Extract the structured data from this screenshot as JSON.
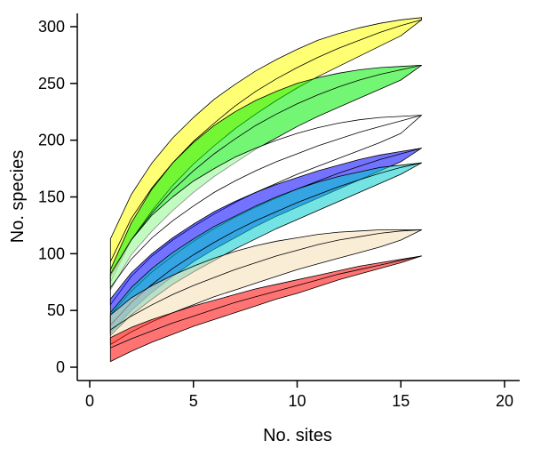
{
  "chart_data": {
    "type": "area",
    "title": "",
    "xlabel": "No. sites",
    "ylabel": "No. species",
    "xlim": [
      0,
      20
    ],
    "ylim": [
      0,
      300
    ],
    "x_ticks": [
      "0",
      "5",
      "10",
      "15",
      "20"
    ],
    "y_ticks": [
      "0",
      "50",
      "100",
      "150",
      "200",
      "250",
      "300"
    ],
    "grid": false,
    "legend": "none",
    "x": [
      1,
      2,
      3,
      4,
      5,
      6,
      7,
      8,
      9,
      10,
      11,
      12,
      13,
      14,
      15,
      16
    ],
    "series": [
      {
        "color": "#ffff00",
        "upper": [
          113,
          152,
          180,
          202,
          220,
          236,
          249,
          261,
          271,
          280,
          288,
          294,
          299,
          303,
          306,
          308
        ],
        "mid": [
          93,
          131,
          158,
          180,
          199,
          215,
          230,
          243,
          254,
          264,
          273,
          281,
          288,
          295,
          301,
          306
        ],
        "lower": [
          75,
          112,
          138,
          160,
          179,
          195,
          210,
          223,
          235,
          246,
          256,
          265,
          274,
          283,
          292,
          306
        ]
      },
      {
        "color": "#00ee00",
        "upper": [
          86,
          127,
          157,
          180,
          198,
          213,
          225,
          235,
          243,
          250,
          255,
          259,
          262,
          264,
          265,
          266
        ],
        "mid": [
          80,
          112,
          136,
          156,
          173,
          188,
          201,
          213,
          223,
          232,
          240,
          247,
          253,
          258,
          262,
          266
        ],
        "lower": [
          68,
          99,
          120,
          138,
          154,
          168,
          180,
          192,
          202,
          212,
          221,
          229,
          237,
          245,
          253,
          266
        ]
      },
      {
        "color": "#ffffff",
        "upper": [
          82,
          112,
          134,
          150,
          164,
          175,
          185,
          193,
          200,
          206,
          211,
          215,
          218,
          220,
          221,
          222
        ],
        "mid": [
          70,
          95,
          114,
          129,
          142,
          154,
          164,
          173,
          181,
          188,
          195,
          201,
          207,
          212,
          217,
          222
        ],
        "lower": [
          55,
          80,
          98,
          112,
          124,
          135,
          145,
          154,
          162,
          170,
          177,
          184,
          191,
          198,
          206,
          222
        ]
      },
      {
        "color": "#0000ff",
        "upper": [
          60,
          83,
          100,
          114,
          126,
          137,
          146,
          154,
          161,
          167,
          173,
          178,
          183,
          187,
          190,
          193
        ],
        "mid": [
          46,
          67,
          84,
          98,
          111,
          122,
          132,
          141,
          149,
          157,
          164,
          171,
          177,
          183,
          188,
          193
        ],
        "lower": [
          30,
          50,
          66,
          80,
          93,
          104,
          114,
          124,
          133,
          141,
          149,
          157,
          165,
          173,
          181,
          193
        ]
      },
      {
        "color": "#00cccc",
        "upper": [
          48,
          70,
          87,
          101,
          113,
          124,
          133,
          142,
          150,
          157,
          163,
          168,
          172,
          176,
          178,
          180
        ],
        "mid": [
          37,
          57,
          73,
          87,
          99,
          110,
          120,
          129,
          137,
          145,
          152,
          159,
          165,
          171,
          176,
          180
        ],
        "lower": [
          28,
          46,
          60,
          73,
          84,
          94,
          104,
          113,
          122,
          130,
          138,
          146,
          154,
          162,
          170,
          180
        ]
      },
      {
        "color": "#f5deb3",
        "upper": [
          46,
          61,
          72,
          81,
          89,
          96,
          102,
          107,
          111,
          114,
          117,
          119,
          120,
          121,
          121,
          121
        ],
        "mid": [
          33,
          45,
          55,
          64,
          72,
          79,
          86,
          92,
          98,
          103,
          108,
          112,
          115,
          118,
          120,
          121
        ],
        "lower": [
          20,
          31,
          40,
          48,
          55,
          62,
          68,
          74,
          80,
          86,
          91,
          96,
          101,
          106,
          112,
          121
        ]
      },
      {
        "color": "#ff0000",
        "upper": [
          26,
          35,
          42,
          48,
          54,
          59,
          64,
          69,
          73,
          77,
          81,
          85,
          89,
          92,
          95,
          98
        ],
        "mid": [
          17,
          25,
          32,
          39,
          45,
          51,
          57,
          62,
          67,
          72,
          77,
          82,
          86,
          90,
          94,
          98
        ],
        "lower": [
          5,
          14,
          22,
          29,
          36,
          42,
          48,
          54,
          60,
          65,
          71,
          77,
          82,
          87,
          92,
          98
        ]
      }
    ]
  }
}
